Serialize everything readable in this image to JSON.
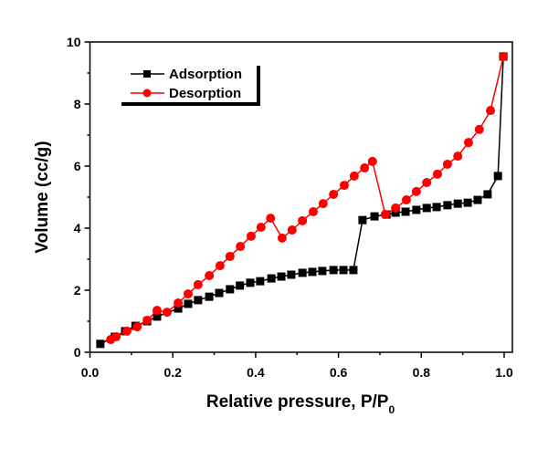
{
  "chart_data": {
    "type": "line",
    "title": "",
    "xlabel": "Relative pressure, P/P",
    "xlabel_subscript": "0",
    "ylabel": "Volume (cc/g)",
    "xlim": [
      0.0,
      1.02
    ],
    "ylim": [
      0,
      10
    ],
    "xticks": [
      0.0,
      0.2,
      0.4,
      0.6,
      0.8,
      1.0
    ],
    "xtick_labels": [
      "0.0",
      "0.2",
      "0.4",
      "0.6",
      "0.8",
      "1.0"
    ],
    "xminor": [
      0.1,
      0.3,
      0.5,
      0.7,
      0.9
    ],
    "yticks": [
      0,
      2,
      4,
      6,
      8,
      10
    ],
    "ytick_labels": [
      "0",
      "2",
      "4",
      "6",
      "8",
      "10"
    ],
    "yminor": [
      1,
      3,
      5,
      7,
      9
    ],
    "grid": false,
    "legend_position": "top-left",
    "series": [
      {
        "name": "Adsorption",
        "color": "#000000",
        "marker": "square",
        "x": [
          0.025,
          0.06,
          0.085,
          0.11,
          0.138,
          0.162,
          0.213,
          0.237,
          0.261,
          0.288,
          0.312,
          0.338,
          0.362,
          0.387,
          0.411,
          0.438,
          0.462,
          0.486,
          0.513,
          0.537,
          0.561,
          0.588,
          0.612,
          0.636,
          0.658,
          0.687,
          0.716,
          0.738,
          0.762,
          0.788,
          0.813,
          0.837,
          0.863,
          0.888,
          0.912,
          0.936,
          0.96,
          0.985,
          0.998
        ],
        "y": [
          0.27,
          0.5,
          0.68,
          0.85,
          1.0,
          1.15,
          1.41,
          1.56,
          1.68,
          1.79,
          1.91,
          2.03,
          2.15,
          2.24,
          2.29,
          2.38,
          2.44,
          2.5,
          2.56,
          2.59,
          2.62,
          2.65,
          2.65,
          2.65,
          4.26,
          4.38,
          4.44,
          4.5,
          4.53,
          4.59,
          4.65,
          4.68,
          4.74,
          4.79,
          4.82,
          4.91,
          5.09,
          5.68,
          9.53
        ]
      },
      {
        "name": "Desorption",
        "color": "#ff0000",
        "marker": "circle",
        "x": [
          0.998,
          0.967,
          0.94,
          0.914,
          0.888,
          0.863,
          0.839,
          0.813,
          0.788,
          0.764,
          0.738,
          0.713,
          0.682,
          0.663,
          0.638,
          0.614,
          0.588,
          0.563,
          0.539,
          0.513,
          0.488,
          0.464,
          0.436,
          0.413,
          0.389,
          0.363,
          0.338,
          0.314,
          0.288,
          0.261,
          0.237,
          0.213,
          0.186,
          0.162,
          0.138,
          0.114,
          0.089,
          0.063,
          0.05
        ],
        "y": [
          9.53,
          7.79,
          7.18,
          6.76,
          6.32,
          6.06,
          5.74,
          5.47,
          5.18,
          4.91,
          4.65,
          4.44,
          6.15,
          5.94,
          5.68,
          5.38,
          5.09,
          4.79,
          4.53,
          4.24,
          3.94,
          3.68,
          4.32,
          4.03,
          3.74,
          3.41,
          3.09,
          2.79,
          2.47,
          2.18,
          1.88,
          1.59,
          1.29,
          1.35,
          1.03,
          0.82,
          0.68,
          0.5,
          0.41
        ]
      }
    ]
  }
}
